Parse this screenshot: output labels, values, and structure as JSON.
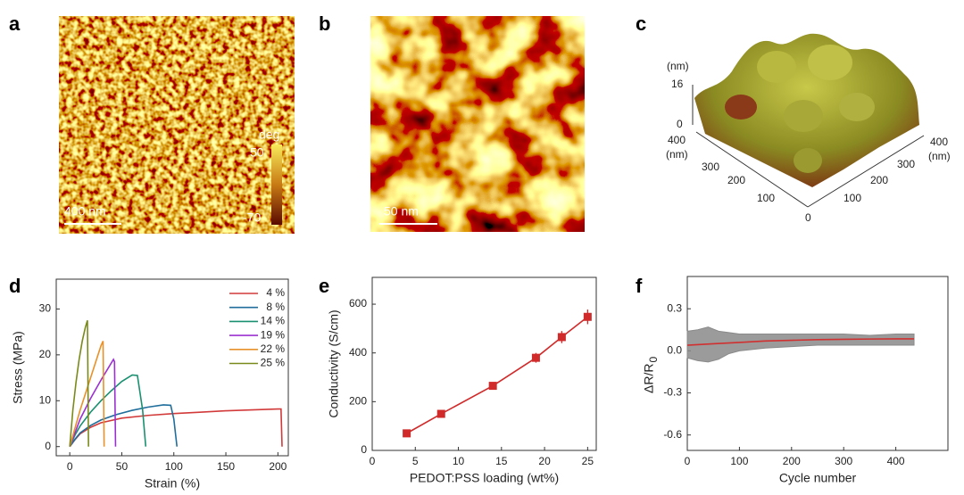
{
  "images": [
    {
      "panel": "a",
      "scale_bar": "400 nm",
      "colorbar_unit": "deg",
      "colorbar_max": 50,
      "colorbar_min": -70
    },
    {
      "panel": "b",
      "scale_bar": "50 nm"
    },
    {
      "panel": "c",
      "z_unit": "(nm)",
      "z_ticks": [
        16,
        0
      ],
      "y_ticks": [
        400,
        300,
        200,
        100,
        0
      ],
      "y_unit": "(nm)",
      "x_ticks": [
        400,
        300,
        200,
        100
      ],
      "x_unit": "(nm)"
    }
  ],
  "chart_data": [
    {
      "type": "line",
      "panel": "d",
      "xlabel": "Strain (%)",
      "ylabel": "Stress (MPa)",
      "xlim": [
        -13,
        210
      ],
      "ylim": [
        -2,
        36.5
      ],
      "xticks": [
        0,
        50,
        100,
        150,
        200
      ],
      "yticks": [
        0,
        10,
        20,
        30
      ],
      "legend": "upper right",
      "series": [
        {
          "name": "4 %",
          "color": "#d23a3a",
          "x": [
            0,
            5,
            10,
            20,
            30,
            50,
            75,
            100,
            125,
            150,
            175,
            200,
            203,
            204
          ],
          "values": [
            0,
            1.5,
            2.8,
            4.2,
            5.2,
            6.2,
            6.8,
            7.2,
            7.5,
            7.8,
            8.0,
            8.2,
            8.2,
            0
          ]
        },
        {
          "name": "8 %",
          "color": "#1f6e9c",
          "x": [
            0,
            5,
            10,
            20,
            30,
            45,
            60,
            75,
            90,
            97,
            100,
            103
          ],
          "values": [
            0,
            1.6,
            3.0,
            4.6,
            5.8,
            7.0,
            7.9,
            8.6,
            9.1,
            9.0,
            6,
            0
          ]
        },
        {
          "name": "14 %",
          "color": "#1a9070",
          "x": [
            0,
            5,
            10,
            20,
            30,
            40,
            50,
            60,
            65,
            70,
            73
          ],
          "values": [
            0,
            2.5,
            4.5,
            7.5,
            10,
            12.2,
            14.2,
            15.6,
            15.5,
            8,
            0
          ]
        },
        {
          "name": "19 %",
          "color": "#9b30d0",
          "x": [
            0,
            5,
            10,
            20,
            30,
            38,
            42,
            43,
            44
          ],
          "values": [
            0,
            3,
            6,
            10.5,
            14.5,
            17.5,
            19,
            18.5,
            0
          ]
        },
        {
          "name": "22 %",
          "color": "#e8912a",
          "x": [
            0,
            5,
            10,
            15,
            20,
            25,
            30,
            32,
            33
          ],
          "values": [
            0,
            4,
            8,
            11.5,
            15,
            18.5,
            22,
            23,
            0
          ]
        },
        {
          "name": "25 %",
          "color": "#7a8a1a",
          "x": [
            0,
            3,
            6,
            9,
            12,
            15,
            17,
            18
          ],
          "values": [
            0,
            8,
            14,
            19,
            23,
            26,
            27.5,
            0
          ]
        }
      ]
    },
    {
      "type": "errorbar",
      "panel": "e",
      "xlabel": "PEDOT:PSS loading (wt%)",
      "ylabel": "Conductivity (S/cm)",
      "xlim": [
        0,
        26
      ],
      "ylim": [
        0,
        710
      ],
      "xticks": [
        0,
        5,
        10,
        15,
        20,
        25
      ],
      "yticks": [
        0,
        200,
        400,
        600
      ],
      "series": [
        {
          "color": "#d02a2a",
          "marker": "square",
          "x": [
            4,
            8,
            14,
            19,
            22,
            25
          ],
          "values": [
            70,
            150,
            265,
            380,
            465,
            548
          ],
          "errors": [
            8,
            10,
            10,
            20,
            25,
            30
          ]
        }
      ]
    },
    {
      "type": "line",
      "panel": "f",
      "xlabel": "Cycle number",
      "ylabel": "ΔR/R",
      "ylabel_sub": "0",
      "xlim": [
        0,
        500
      ],
      "ylim": [
        -0.71,
        0.53
      ],
      "xticks": [
        0,
        100,
        200,
        300,
        400
      ],
      "yticks": [
        -0.6,
        -0.3,
        {
          "value": 0,
          "label": "0.0"
        },
        0.3
      ],
      "band": {
        "color": "#8a8a8a",
        "x": [
          0,
          20,
          40,
          60,
          80,
          100,
          150,
          200,
          250,
          300,
          350,
          400,
          435
        ],
        "upper": [
          0.14,
          0.15,
          0.17,
          0.14,
          0.13,
          0.12,
          0.12,
          0.12,
          0.12,
          0.12,
          0.11,
          0.12,
          0.12
        ],
        "lower": [
          -0.05,
          -0.07,
          -0.08,
          -0.06,
          -0.02,
          0.0,
          0.02,
          0.03,
          0.04,
          0.04,
          0.04,
          0.04,
          0.04
        ]
      },
      "series": [
        {
          "color": "#d03030",
          "x": [
            0,
            50,
            100,
            150,
            200,
            250,
            300,
            350,
            400,
            435
          ],
          "values": [
            0.04,
            0.05,
            0.06,
            0.07,
            0.075,
            0.08,
            0.082,
            0.084,
            0.085,
            0.085
          ]
        }
      ]
    }
  ]
}
